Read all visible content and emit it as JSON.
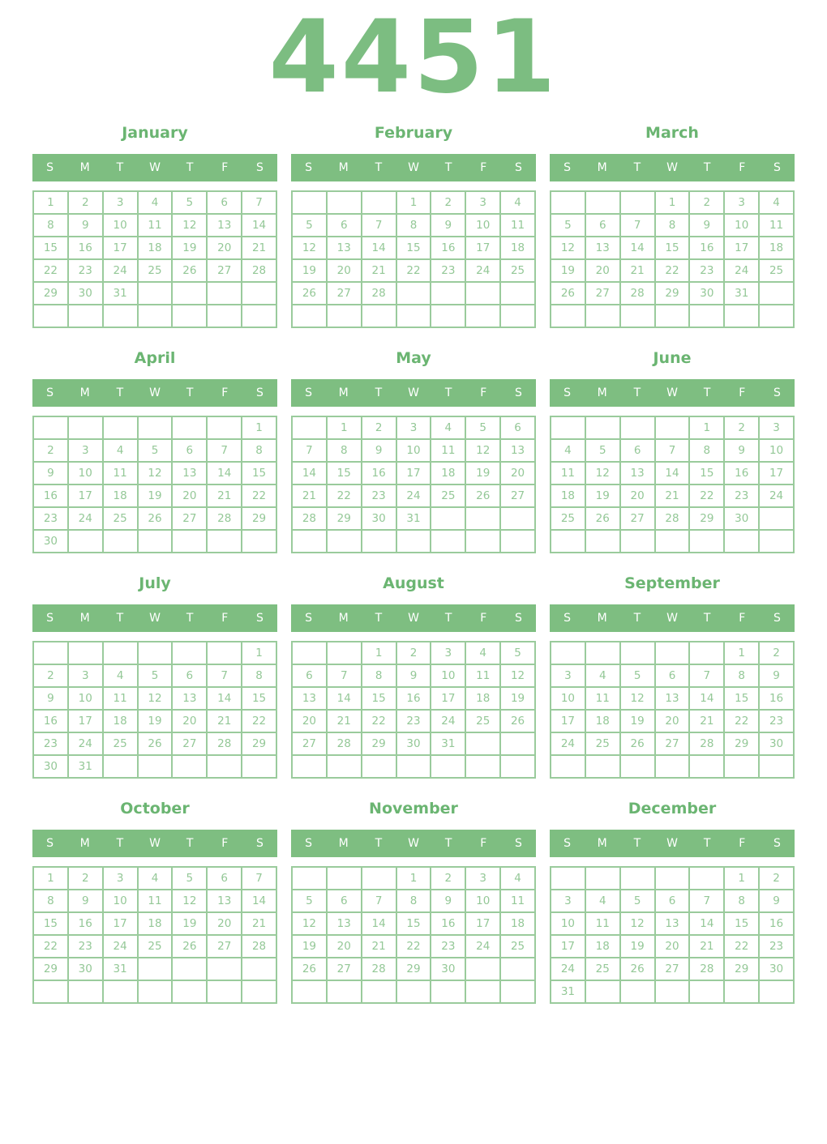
{
  "year": "4451",
  "weekday_headers": [
    "S",
    "M",
    "T",
    "W",
    "T",
    "F",
    "S"
  ],
  "colors": {
    "title_green": "#7cbd81",
    "month_title_green": "#6bb572",
    "header_bar_bg": "#7ebe81",
    "header_bar_text": "#ffffff",
    "day_number_green": "#94c897",
    "grid_border_green": "#9acb9c",
    "page_background": "#ffffff"
  },
  "months": [
    {
      "name": "January",
      "weeks": [
        [
          "1",
          "2",
          "3",
          "4",
          "5",
          "6",
          "7"
        ],
        [
          "8",
          "9",
          "10",
          "11",
          "12",
          "13",
          "14"
        ],
        [
          "15",
          "16",
          "17",
          "18",
          "19",
          "20",
          "21"
        ],
        [
          "22",
          "23",
          "24",
          "25",
          "26",
          "27",
          "28"
        ],
        [
          "29",
          "30",
          "31",
          "",
          "",
          "",
          ""
        ],
        [
          "",
          "",
          "",
          "",
          "",
          "",
          ""
        ]
      ]
    },
    {
      "name": "February",
      "weeks": [
        [
          "",
          "",
          "",
          "1",
          "2",
          "3",
          "4"
        ],
        [
          "5",
          "6",
          "7",
          "8",
          "9",
          "10",
          "11"
        ],
        [
          "12",
          "13",
          "14",
          "15",
          "16",
          "17",
          "18"
        ],
        [
          "19",
          "20",
          "21",
          "22",
          "23",
          "24",
          "25"
        ],
        [
          "26",
          "27",
          "28",
          "",
          "",
          "",
          ""
        ],
        [
          "",
          "",
          "",
          "",
          "",
          "",
          ""
        ]
      ]
    },
    {
      "name": "March",
      "weeks": [
        [
          "",
          "",
          "",
          "1",
          "2",
          "3",
          "4"
        ],
        [
          "5",
          "6",
          "7",
          "8",
          "9",
          "10",
          "11"
        ],
        [
          "12",
          "13",
          "14",
          "15",
          "16",
          "17",
          "18"
        ],
        [
          "19",
          "20",
          "21",
          "22",
          "23",
          "24",
          "25"
        ],
        [
          "26",
          "27",
          "28",
          "29",
          "30",
          "31",
          ""
        ],
        [
          "",
          "",
          "",
          "",
          "",
          "",
          ""
        ]
      ]
    },
    {
      "name": "April",
      "weeks": [
        [
          "",
          "",
          "",
          "",
          "",
          "",
          "1"
        ],
        [
          "2",
          "3",
          "4",
          "5",
          "6",
          "7",
          "8"
        ],
        [
          "9",
          "10",
          "11",
          "12",
          "13",
          "14",
          "15"
        ],
        [
          "16",
          "17",
          "18",
          "19",
          "20",
          "21",
          "22"
        ],
        [
          "23",
          "24",
          "25",
          "26",
          "27",
          "28",
          "29"
        ],
        [
          "30",
          "",
          "",
          "",
          "",
          "",
          ""
        ]
      ]
    },
    {
      "name": "May",
      "weeks": [
        [
          "",
          "1",
          "2",
          "3",
          "4",
          "5",
          "6"
        ],
        [
          "7",
          "8",
          "9",
          "10",
          "11",
          "12",
          "13"
        ],
        [
          "14",
          "15",
          "16",
          "17",
          "18",
          "19",
          "20"
        ],
        [
          "21",
          "22",
          "23",
          "24",
          "25",
          "26",
          "27"
        ],
        [
          "28",
          "29",
          "30",
          "31",
          "",
          "",
          ""
        ],
        [
          "",
          "",
          "",
          "",
          "",
          "",
          ""
        ]
      ]
    },
    {
      "name": "June",
      "weeks": [
        [
          "",
          "",
          "",
          "",
          "1",
          "2",
          "3"
        ],
        [
          "4",
          "5",
          "6",
          "7",
          "8",
          "9",
          "10"
        ],
        [
          "11",
          "12",
          "13",
          "14",
          "15",
          "16",
          "17"
        ],
        [
          "18",
          "19",
          "20",
          "21",
          "22",
          "23",
          "24"
        ],
        [
          "25",
          "26",
          "27",
          "28",
          "29",
          "30",
          ""
        ],
        [
          "",
          "",
          "",
          "",
          "",
          "",
          ""
        ]
      ]
    },
    {
      "name": "July",
      "weeks": [
        [
          "",
          "",
          "",
          "",
          "",
          "",
          "1"
        ],
        [
          "2",
          "3",
          "4",
          "5",
          "6",
          "7",
          "8"
        ],
        [
          "9",
          "10",
          "11",
          "12",
          "13",
          "14",
          "15"
        ],
        [
          "16",
          "17",
          "18",
          "19",
          "20",
          "21",
          "22"
        ],
        [
          "23",
          "24",
          "25",
          "26",
          "27",
          "28",
          "29"
        ],
        [
          "30",
          "31",
          "",
          "",
          "",
          "",
          ""
        ]
      ]
    },
    {
      "name": "August",
      "weeks": [
        [
          "",
          "",
          "1",
          "2",
          "3",
          "4",
          "5"
        ],
        [
          "6",
          "7",
          "8",
          "9",
          "10",
          "11",
          "12"
        ],
        [
          "13",
          "14",
          "15",
          "16",
          "17",
          "18",
          "19"
        ],
        [
          "20",
          "21",
          "22",
          "23",
          "24",
          "25",
          "26"
        ],
        [
          "27",
          "28",
          "29",
          "30",
          "31",
          "",
          ""
        ],
        [
          "",
          "",
          "",
          "",
          "",
          "",
          ""
        ]
      ]
    },
    {
      "name": "September",
      "weeks": [
        [
          "",
          "",
          "",
          "",
          "",
          "1",
          "2"
        ],
        [
          "3",
          "4",
          "5",
          "6",
          "7",
          "8",
          "9"
        ],
        [
          "10",
          "11",
          "12",
          "13",
          "14",
          "15",
          "16"
        ],
        [
          "17",
          "18",
          "19",
          "20",
          "21",
          "22",
          "23"
        ],
        [
          "24",
          "25",
          "26",
          "27",
          "28",
          "29",
          "30"
        ],
        [
          "",
          "",
          "",
          "",
          "",
          "",
          ""
        ]
      ]
    },
    {
      "name": "October",
      "weeks": [
        [
          "1",
          "2",
          "3",
          "4",
          "5",
          "6",
          "7"
        ],
        [
          "8",
          "9",
          "10",
          "11",
          "12",
          "13",
          "14"
        ],
        [
          "15",
          "16",
          "17",
          "18",
          "19",
          "20",
          "21"
        ],
        [
          "22",
          "23",
          "24",
          "25",
          "26",
          "27",
          "28"
        ],
        [
          "29",
          "30",
          "31",
          "",
          "",
          "",
          ""
        ],
        [
          "",
          "",
          "",
          "",
          "",
          "",
          ""
        ]
      ]
    },
    {
      "name": "November",
      "weeks": [
        [
          "",
          "",
          "",
          "1",
          "2",
          "3",
          "4"
        ],
        [
          "5",
          "6",
          "7",
          "8",
          "9",
          "10",
          "11"
        ],
        [
          "12",
          "13",
          "14",
          "15",
          "16",
          "17",
          "18"
        ],
        [
          "19",
          "20",
          "21",
          "22",
          "23",
          "24",
          "25"
        ],
        [
          "26",
          "27",
          "28",
          "29",
          "30",
          "",
          ""
        ],
        [
          "",
          "",
          "",
          "",
          "",
          "",
          ""
        ]
      ]
    },
    {
      "name": "December",
      "weeks": [
        [
          "",
          "",
          "",
          "",
          "",
          "1",
          "2"
        ],
        [
          "3",
          "4",
          "5",
          "6",
          "7",
          "8",
          "9"
        ],
        [
          "10",
          "11",
          "12",
          "13",
          "14",
          "15",
          "16"
        ],
        [
          "17",
          "18",
          "19",
          "20",
          "21",
          "22",
          "23"
        ],
        [
          "24",
          "25",
          "26",
          "27",
          "28",
          "29",
          "30"
        ],
        [
          "31",
          "",
          "",
          "",
          "",
          "",
          ""
        ]
      ]
    }
  ]
}
